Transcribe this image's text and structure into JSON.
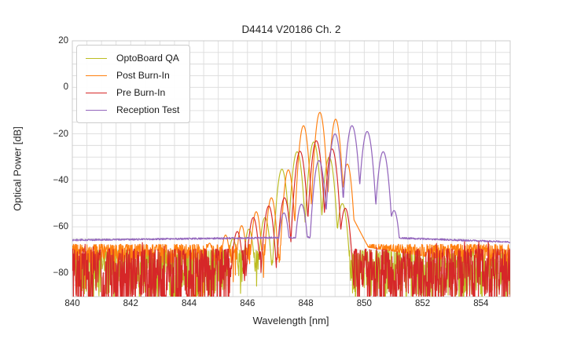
{
  "chart_data": {
    "type": "line",
    "title": "D4414 V20186 Ch. 2",
    "xlabel": "Wavelength [nm]",
    "ylabel": "Optical Power [dB]",
    "xlim": [
      840,
      855
    ],
    "ylim": [
      -90,
      20
    ],
    "x_ticks": [
      840,
      842,
      844,
      846,
      848,
      850,
      852,
      854
    ],
    "y_ticks": [
      20,
      0,
      -20,
      -40,
      -60,
      -80
    ],
    "grid": {
      "visible": true,
      "x_step": 0.5,
      "y_step": 5,
      "color": "#dcdcdc",
      "border_color": "#cccccc"
    },
    "legend": {
      "position": "upper-left"
    },
    "description": "Overlaid VCSEL optical spectra; each series is a comb of longitudinal mode peaks [wavelength_nm, peak_dB] above an instrument noise floor",
    "series": [
      {
        "name": "OptoBoard QA",
        "color": "#bcbd22",
        "mode_peaks": [
          [
            845.5,
            -65
          ],
          [
            846.05,
            -61
          ],
          [
            846.6,
            -56
          ],
          [
            847.18,
            -35.2
          ],
          [
            847.7,
            -27.7
          ],
          [
            848.27,
            -23.5
          ],
          [
            848.8,
            -30
          ],
          [
            849.25,
            -50
          ]
        ],
        "mode_width_k": 400,
        "noise_floor": {
          "base": -70,
          "depth": 20,
          "deep_spike_prob": 0.04,
          "up_spike_prob": 0.0,
          "seed": 11
        }
      },
      {
        "name": "Post Burn-In",
        "color": "#ff7f0e",
        "mode_peaks": [
          [
            844.7,
            -67
          ],
          [
            845.25,
            -63.5
          ],
          [
            845.8,
            -59.5
          ],
          [
            846.3,
            -53.5
          ],
          [
            846.82,
            -47.5
          ],
          [
            847.4,
            -35.5
          ],
          [
            847.92,
            -16.5
          ],
          [
            848.48,
            -10.8
          ],
          [
            849.02,
            -13.7
          ],
          [
            849.42,
            -33
          ]
        ],
        "mode_width_k": 470,
        "tail": {
          "start": 849.65,
          "level": -57,
          "slope": 24,
          "start2": 850.0,
          "level2": -68.5,
          "slope2": 2
        },
        "noise_floor": {
          "base": -67.5,
          "depth": 9,
          "deep_spike_prob": 0.03,
          "up_spike_prob": 0.0,
          "seed": 22
        }
      },
      {
        "name": "Pre Burn-In",
        "color": "#d62728",
        "mode_peaks": [
          [
            845.65,
            -62
          ],
          [
            846.2,
            -56
          ],
          [
            846.73,
            -51
          ],
          [
            847.27,
            -47.5
          ],
          [
            847.8,
            -27.5
          ],
          [
            848.36,
            -23
          ],
          [
            848.9,
            -26.5
          ],
          [
            849.35,
            -52
          ]
        ],
        "mode_width_k": 400,
        "noise_floor": {
          "base": -69.5,
          "depth": 24,
          "deep_spike_prob": 0.09,
          "up_spike_prob": 0.05,
          "seed": 33
        }
      },
      {
        "name": "Reception Test",
        "color": "#9467bd",
        "mode_peaks": [
          [
            847.25,
            -54
          ],
          [
            847.85,
            -50.3
          ],
          [
            848.45,
            -31.5
          ],
          [
            849.0,
            -20
          ],
          [
            849.58,
            -16.5
          ],
          [
            850.1,
            -19
          ],
          [
            850.65,
            -27.7
          ],
          [
            851.02,
            -53
          ]
        ],
        "mode_width_k": 360,
        "floor": {
          "left_base": -65.7,
          "left_slope": 0.15,
          "split": 851.05,
          "right_base": -64.8,
          "right_ref": 851.2,
          "right_slope": -0.45,
          "ripple": 0.35,
          "seed": 44
        }
      }
    ]
  }
}
